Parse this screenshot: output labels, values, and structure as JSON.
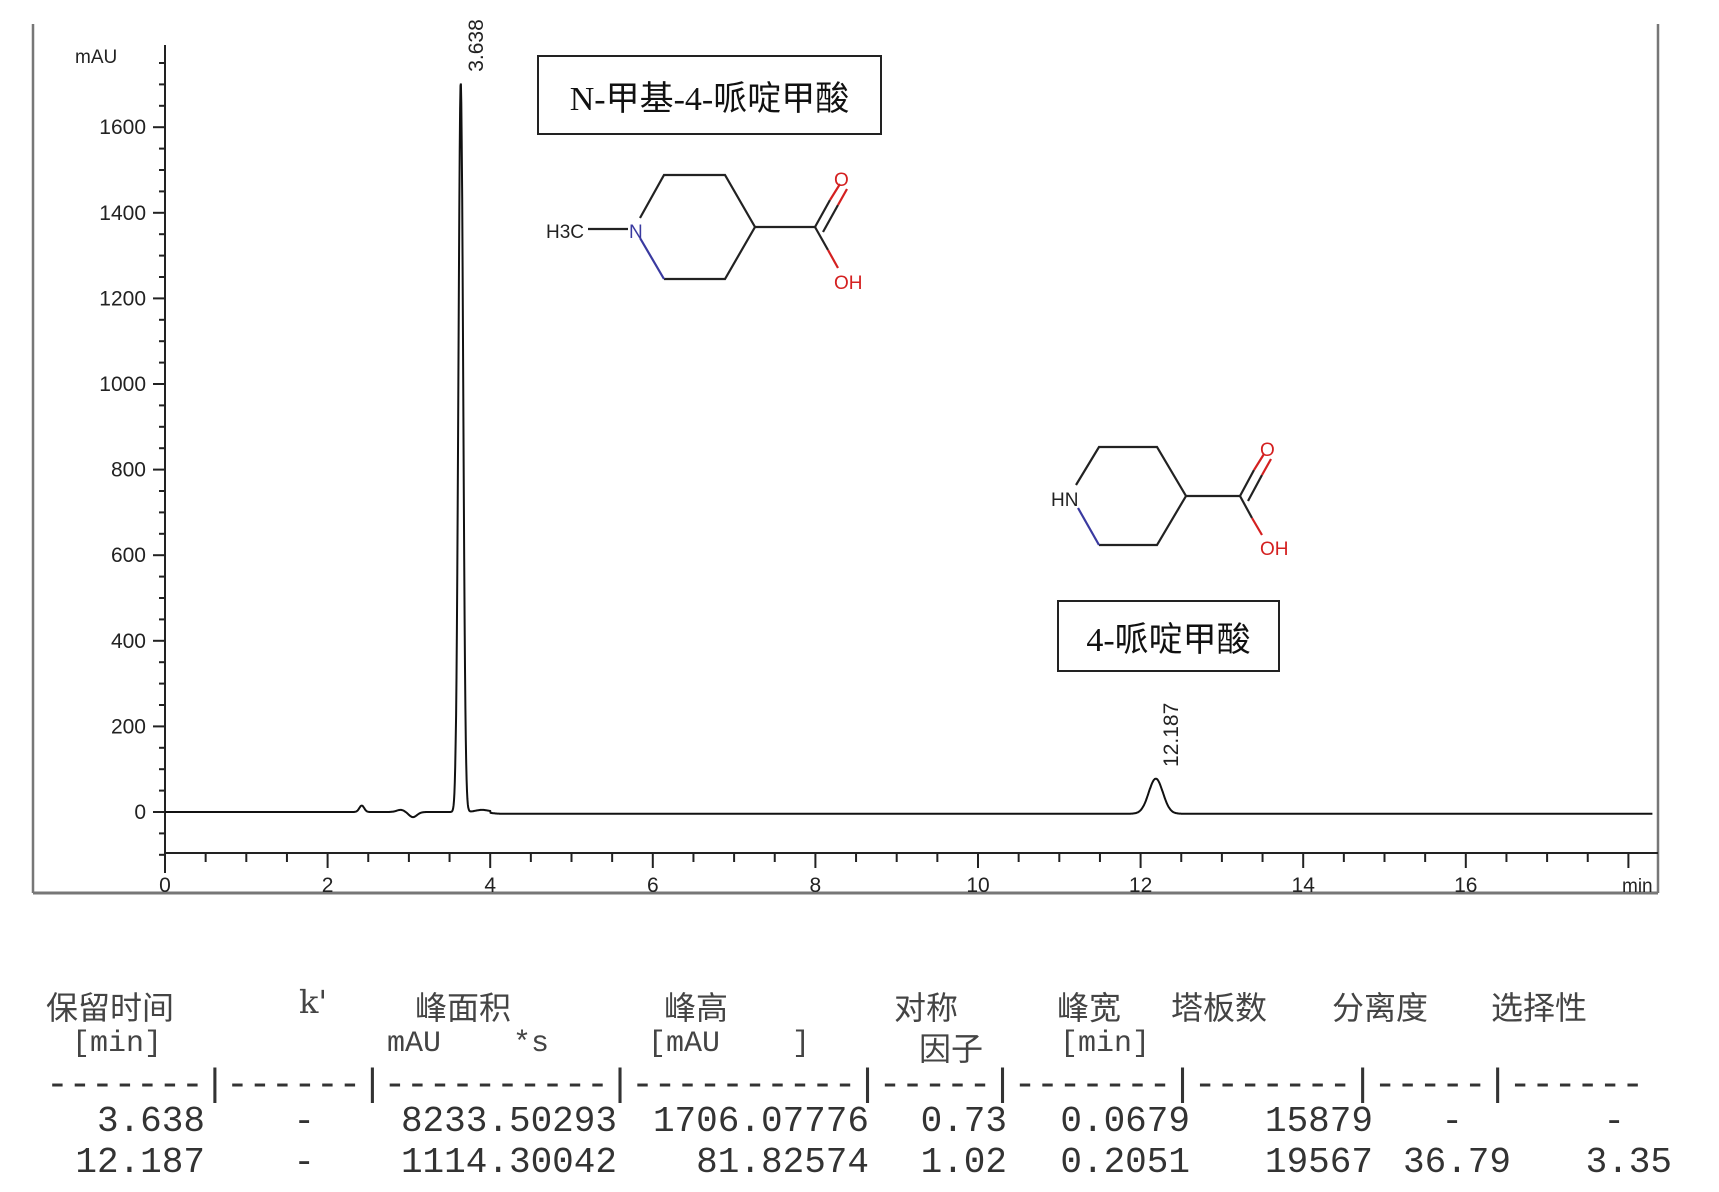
{
  "chart_data": {
    "type": "line",
    "ylabel": "mAU",
    "xlabel": "min",
    "xlim": [
      0,
      18.3
    ],
    "ylim": [
      -100,
      1800
    ],
    "x_ticks": [
      "0",
      "2",
      "4",
      "6",
      "8",
      "10",
      "12",
      "14",
      "16"
    ],
    "y_ticks": [
      "0",
      "200",
      "400",
      "600",
      "800",
      "1000",
      "1200",
      "1400",
      "1600"
    ],
    "peaks": [
      {
        "rt": 3.638,
        "height": 1706.07776,
        "width": 0.0679,
        "label": "3.638"
      },
      {
        "rt": 12.187,
        "height": 81.82574,
        "width": 0.2051,
        "label": "12.187"
      }
    ],
    "annotations": [
      {
        "text": "N-甲基-4-哌啶甲酸",
        "peak": "3.638",
        "structure_labels": [
          "H3C",
          "N",
          "O",
          "OH"
        ]
      },
      {
        "text": "4-哌啶甲酸",
        "peak": "12.187",
        "structure_labels": [
          "HN",
          "O",
          "OH"
        ]
      }
    ],
    "grid": false,
    "colors": {
      "trace": "#111111",
      "nitrogen": "#3a3aa0",
      "oxygen": "#d42020"
    }
  },
  "table": {
    "headers": [
      "保留时间",
      "k'",
      "峰面积",
      "峰高",
      "对称",
      "峰宽",
      "塔板数",
      "分离度",
      "选择性"
    ],
    "units": [
      "[min]",
      "mAU    *s",
      "[mAU    ]",
      "因子",
      "[min]"
    ],
    "separator": "-------|------|----------|----------|-----|-------|-------|-----|------",
    "rows": [
      [
        "3.638",
        "-",
        "8233.50293",
        "1706.07776",
        "0.73",
        "0.0679",
        "15879",
        "-",
        "-"
      ],
      [
        "12.187",
        "-",
        "1114.30042",
        "81.82574",
        "1.02",
        "0.2051",
        "19567",
        "36.79",
        "3.35"
      ]
    ]
  }
}
